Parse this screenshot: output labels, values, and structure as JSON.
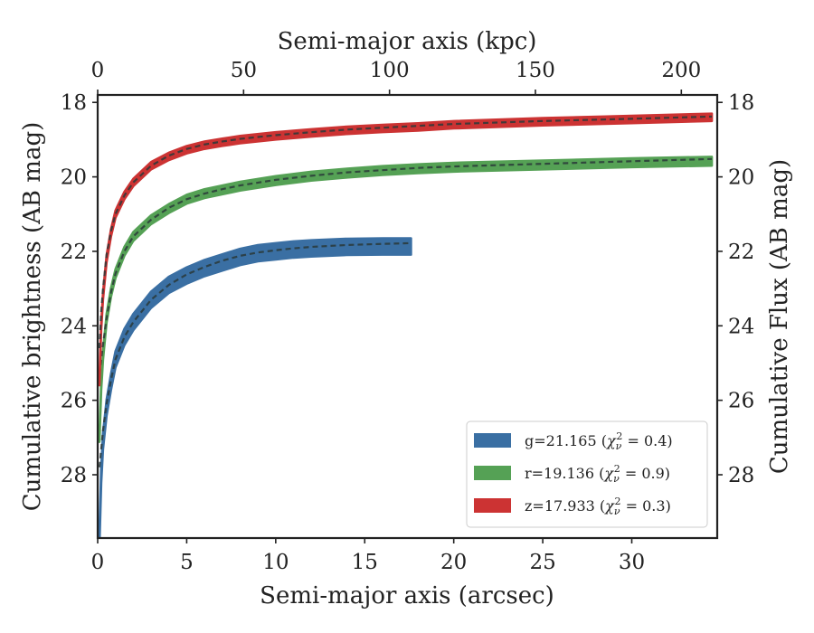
{
  "chart_data": {
    "type": "line",
    "xlabel": "Semi-major axis (arcsec)",
    "xlabel_top": "Semi-major axis (kpc)",
    "ylabel": "Cumulative brightness (AB mag)",
    "ylabel_right": "Cumulative Flux (AB mag)",
    "xlim": [
      0,
      34.8
    ],
    "ylim": [
      29.7,
      17.8
    ],
    "y_inverted": true,
    "xlim_top": [
      0,
      212.3
    ],
    "xticks": [
      0,
      5,
      10,
      15,
      20,
      25,
      30
    ],
    "xticks_top": [
      0,
      50,
      100,
      150,
      200
    ],
    "yticks": [
      18,
      20,
      22,
      24,
      26,
      28
    ],
    "grid": false,
    "legend_position": "bottom-right",
    "legend": [
      {
        "band": "g",
        "label": "g=21.165",
        "chi": "0.4"
      },
      {
        "band": "r",
        "label": "r=19.136",
        "chi": "0.9"
      },
      {
        "band": "z",
        "label": "z=17.933",
        "chi": "0.3"
      }
    ],
    "series": [
      {
        "name": "g=21.165",
        "color": "#3a6fa3",
        "band_width": 0.22,
        "x": [
          0.1,
          0.2,
          0.3,
          0.5,
          0.75,
          1.0,
          1.5,
          2.0,
          3.0,
          4.0,
          5.0,
          6.0,
          7.0,
          8.0,
          9.0,
          10.0,
          11.0,
          12.0,
          14.0,
          16.0,
          17.6
        ],
        "y": [
          29.7,
          28.0,
          27.1,
          26.2,
          25.5,
          24.9,
          24.3,
          23.9,
          23.3,
          22.9,
          22.65,
          22.45,
          22.3,
          22.15,
          22.05,
          22.0,
          21.95,
          21.92,
          21.88,
          21.87,
          21.87
        ],
        "model_x": [
          0.1,
          0.2,
          0.3,
          0.5,
          0.75,
          1.0,
          1.5,
          2.0,
          3.0,
          4.0,
          5.0,
          6.0,
          7.0,
          8.0,
          9.0,
          10.0,
          11.0,
          12.0,
          14.0,
          16.0,
          17.6
        ],
        "model_y": [
          27.8,
          27.3,
          26.8,
          26.1,
          25.45,
          24.9,
          24.3,
          23.9,
          23.3,
          22.9,
          22.62,
          22.42,
          22.25,
          22.12,
          22.03,
          21.97,
          21.92,
          21.88,
          21.83,
          21.8,
          21.78
        ]
      },
      {
        "name": "r=19.136",
        "color": "#55a155",
        "band_width": 0.12,
        "x": [
          0.1,
          0.2,
          0.3,
          0.5,
          0.75,
          1.0,
          1.5,
          2.0,
          3.0,
          4.0,
          5.0,
          6.0,
          7.0,
          8.0,
          10.0,
          12.0,
          14.0,
          16.0,
          18.0,
          20.0,
          25.0,
          30.0,
          34.5
        ],
        "y": [
          27.0,
          25.6,
          24.8,
          23.8,
          23.1,
          22.6,
          22.0,
          21.6,
          21.15,
          20.85,
          20.6,
          20.45,
          20.35,
          20.25,
          20.1,
          19.98,
          19.9,
          19.83,
          19.78,
          19.74,
          19.68,
          19.62,
          19.58
        ],
        "model_x": [
          0.1,
          0.2,
          0.3,
          0.5,
          0.75,
          1.0,
          1.5,
          2.0,
          3.0,
          4.0,
          5.0,
          6.0,
          7.0,
          8.0,
          10.0,
          12.0,
          14.0,
          16.0,
          18.0,
          20.0,
          25.0,
          30.0,
          34.5
        ],
        "model_y": [
          25.3,
          24.9,
          24.5,
          23.8,
          23.1,
          22.6,
          22.0,
          21.6,
          21.15,
          20.83,
          20.6,
          20.45,
          20.33,
          20.23,
          20.08,
          19.97,
          19.88,
          19.82,
          19.76,
          19.72,
          19.65,
          19.58,
          19.52
        ]
      },
      {
        "name": "z=17.933",
        "color": "#cc3333",
        "band_width": 0.1,
        "x": [
          0.1,
          0.2,
          0.3,
          0.5,
          0.75,
          1.0,
          1.5,
          2.0,
          3.0,
          4.0,
          5.0,
          6.0,
          7.0,
          8.0,
          10.0,
          12.0,
          14.0,
          16.0,
          18.0,
          20.0,
          25.0,
          30.0,
          34.5
        ],
        "y": [
          25.5,
          24.0,
          23.2,
          22.2,
          21.5,
          21.0,
          20.5,
          20.15,
          19.7,
          19.45,
          19.27,
          19.15,
          19.07,
          19.0,
          18.9,
          18.82,
          18.75,
          18.7,
          18.66,
          18.6,
          18.52,
          18.46,
          18.4
        ],
        "model_x": [
          0.1,
          0.2,
          0.3,
          0.5,
          0.75,
          1.0,
          1.5,
          2.0,
          3.0,
          4.0,
          5.0,
          6.0,
          7.0,
          8.0,
          10.0,
          12.0,
          14.0,
          16.0,
          18.0,
          20.0,
          25.0,
          30.0,
          34.5
        ],
        "model_y": [
          24.6,
          23.6,
          23.0,
          22.1,
          21.45,
          21.0,
          20.5,
          20.15,
          19.7,
          19.43,
          19.25,
          19.13,
          19.05,
          18.98,
          18.88,
          18.8,
          18.73,
          18.68,
          18.63,
          18.58,
          18.5,
          18.44,
          18.38
        ]
      }
    ]
  }
}
